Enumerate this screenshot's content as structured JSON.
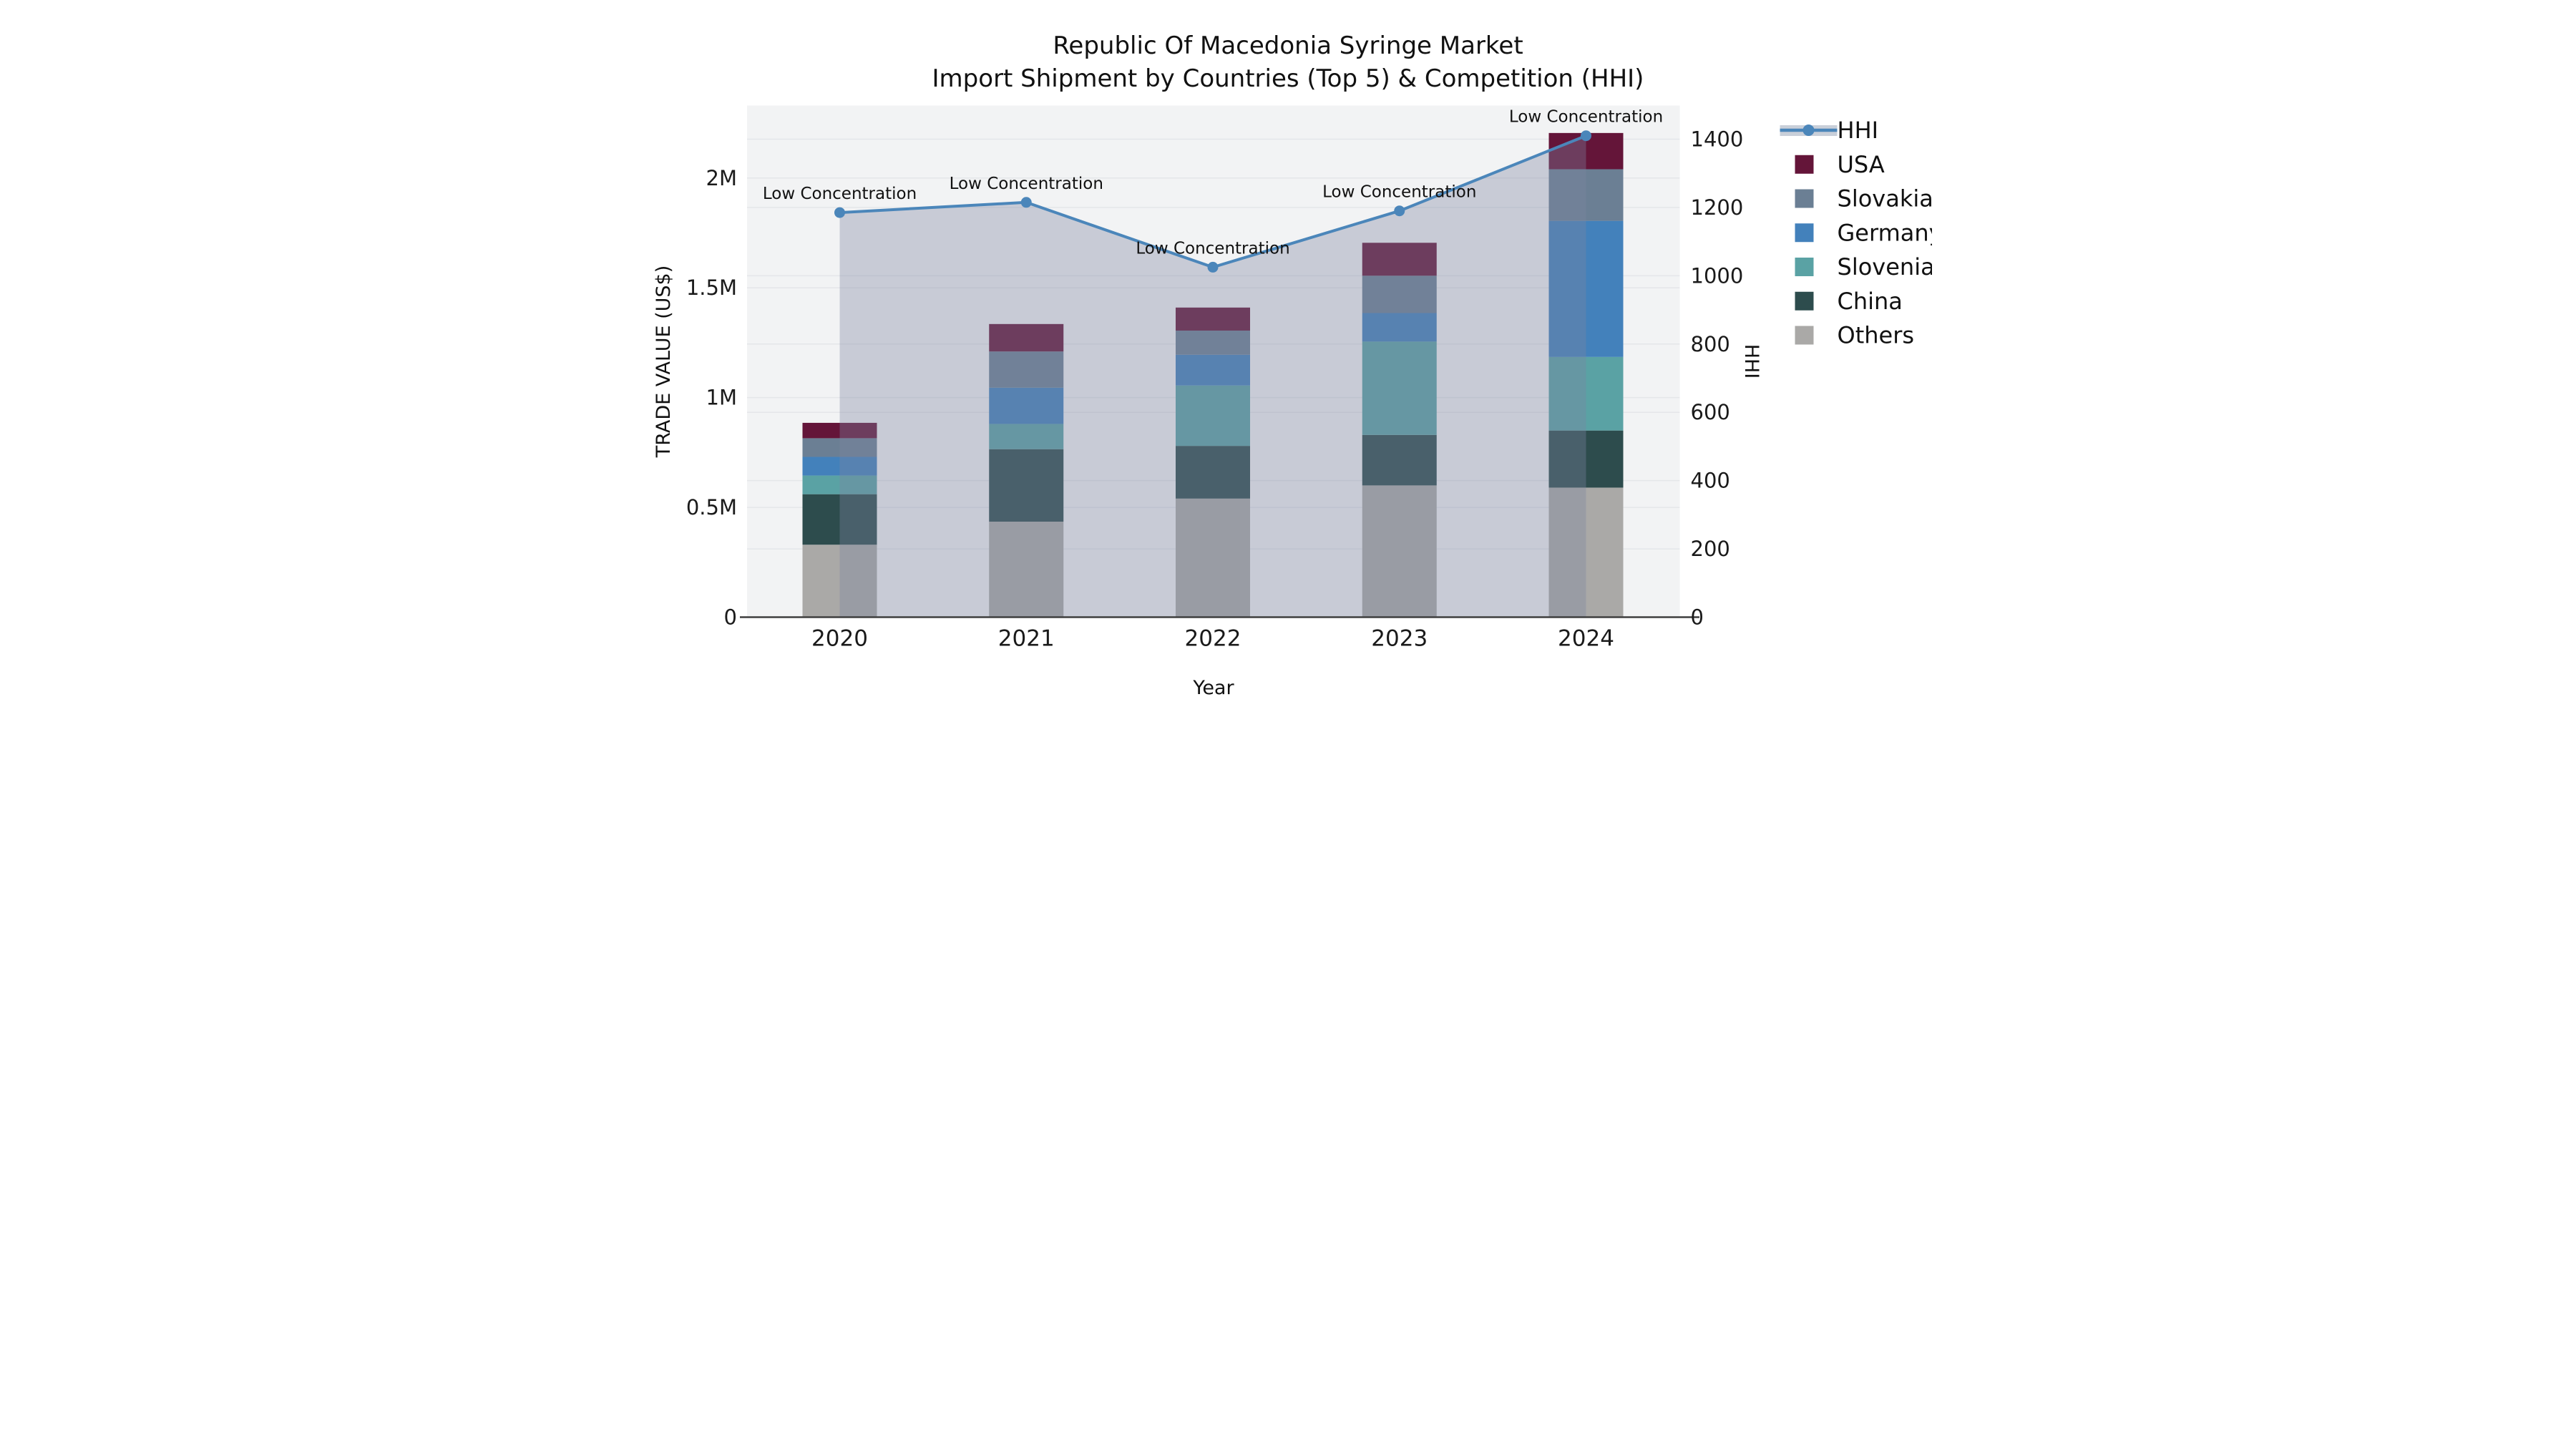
{
  "title": {
    "line1": "Republic Of Macedonia Syringe Market",
    "line2": "Import Shipment by Countries (Top 5) & Competition (HHI)"
  },
  "axes": {
    "left": {
      "title": "TRADE VALUE (US$)",
      "ticks": [
        0,
        500000,
        1000000,
        1500000,
        2000000
      ],
      "tick_labels": [
        "0",
        "0.5M",
        "1M",
        "1.5M",
        "2M"
      ],
      "max": 2330000
    },
    "right": {
      "title": "HHI",
      "ticks": [
        0,
        200,
        400,
        600,
        800,
        1000,
        1200,
        1400
      ],
      "tick_labels": [
        "0",
        "200",
        "400",
        "600",
        "800",
        "1000",
        "1200",
        "1400"
      ],
      "max": 1400
    },
    "x": {
      "title": "Year"
    }
  },
  "chart_data": {
    "type": "bar",
    "subtype": "stacked bars with secondary-axis line",
    "categories": [
      "2020",
      "2021",
      "2022",
      "2023",
      "2024"
    ],
    "series": [
      {
        "name": "Others",
        "color": "#aaa9a7",
        "values": [
          330000,
          435000,
          540000,
          600000,
          590000
        ]
      },
      {
        "name": "China",
        "color": "#2d4c4d",
        "values": [
          230000,
          330000,
          240000,
          230000,
          260000
        ]
      },
      {
        "name": "Slovenia",
        "color": "#5aa2a4",
        "values": [
          85000,
          115000,
          275000,
          425000,
          335000
        ]
      },
      {
        "name": "Germany",
        "color": "#4381bb",
        "values": [
          85000,
          165000,
          140000,
          130000,
          620000
        ]
      },
      {
        "name": "Slovakia",
        "color": "#6b7f94",
        "values": [
          85000,
          165000,
          110000,
          170000,
          235000
        ]
      },
      {
        "name": "USA",
        "color": "#641539",
        "values": [
          70000,
          125000,
          105000,
          150000,
          165000
        ]
      }
    ],
    "line_series": {
      "name": "HHI",
      "color": "#4b86ba",
      "fill_color": "rgba(125,132,160,0.36)",
      "values": [
        1185,
        1215,
        1025,
        1190,
        1410
      ],
      "axis": "right"
    },
    "annotations": [
      "Low Concentration",
      "Low Concentration",
      "Low Concentration",
      "Low Concentration",
      "Low Concentration"
    ],
    "title": "Republic Of Macedonia Syringe Market — Import Shipment by Countries (Top 5) & Competition (HHI)",
    "xlabel": "Year",
    "ylabel": "TRADE VALUE (US$)",
    "y2label": "HHI",
    "ylim": [
      0,
      2330000
    ],
    "y2lim": [
      0,
      1400
    ],
    "grid": true,
    "legend_position": "right"
  },
  "legend": {
    "items": [
      {
        "label": "HHI",
        "type": "line",
        "color": "#4b86ba",
        "band": "#c9cfd9"
      },
      {
        "label": "USA",
        "type": "swatch",
        "color": "#641539"
      },
      {
        "label": "Slovakia",
        "type": "swatch",
        "color": "#6b7f94"
      },
      {
        "label": "Germany",
        "type": "swatch",
        "color": "#4381bb"
      },
      {
        "label": "Slovenia",
        "type": "swatch",
        "color": "#5aa2a4"
      },
      {
        "label": "China",
        "type": "swatch",
        "color": "#2d4c4d"
      },
      {
        "label": "Others",
        "type": "swatch",
        "color": "#aaa9a7"
      }
    ]
  },
  "style": {
    "plot_bg": "#f2f3f4",
    "grid_color": "#e4e6e9",
    "axis_line_color": "#3f3f3f",
    "tick_color": "#1a1a1a",
    "annotation_color": "#111111"
  }
}
